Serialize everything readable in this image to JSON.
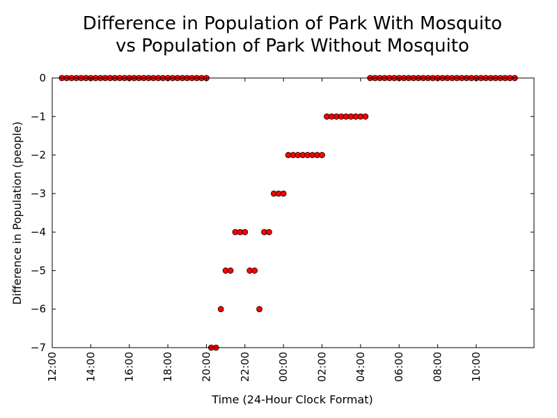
{
  "chart_data": {
    "type": "scatter",
    "title": "Difference in Population of Park With Mosquito\nvs Population of Park Without Mosquito",
    "title_lines": [
      "Difference in Population of Park With Mosquito",
      "vs Population of Park Without Mosquito"
    ],
    "xlabel": "Time (24-Hour Clock Format)",
    "ylabel": "Difference in Population (people)",
    "x_unit": "hours elapsed since 12:00",
    "xlim": [
      0,
      25
    ],
    "ylim": [
      -7,
      0
    ],
    "x_ticks": [
      {
        "value": 0,
        "label": "12:00"
      },
      {
        "value": 2,
        "label": "14:00"
      },
      {
        "value": 4,
        "label": "16:00"
      },
      {
        "value": 6,
        "label": "18:00"
      },
      {
        "value": 8,
        "label": "20:00"
      },
      {
        "value": 10,
        "label": "22:00"
      },
      {
        "value": 12,
        "label": "00:00"
      },
      {
        "value": 14,
        "label": "02:00"
      },
      {
        "value": 16,
        "label": "04:00"
      },
      {
        "value": 18,
        "label": "06:00"
      },
      {
        "value": 20,
        "label": "08:00"
      },
      {
        "value": 22,
        "label": "10:00"
      }
    ],
    "y_ticks": [
      {
        "value": 0,
        "label": "0"
      },
      {
        "value": -1,
        "label": "−1"
      },
      {
        "value": -2,
        "label": "−2"
      },
      {
        "value": -3,
        "label": "−3"
      },
      {
        "value": -4,
        "label": "−4"
      },
      {
        "value": -5,
        "label": "−5"
      },
      {
        "value": -6,
        "label": "−6"
      },
      {
        "value": -7,
        "label": "−7"
      }
    ],
    "grid": false,
    "marker_color": "#ff0000",
    "marker_edge_color": "#000000",
    "series": [
      {
        "points": [
          [
            0.5,
            0
          ],
          [
            0.75,
            0
          ],
          [
            1.0,
            0
          ],
          [
            1.25,
            0
          ],
          [
            1.5,
            0
          ],
          [
            1.75,
            0
          ],
          [
            2.0,
            0
          ],
          [
            2.25,
            0
          ],
          [
            2.5,
            0
          ],
          [
            2.75,
            0
          ],
          [
            3.0,
            0
          ],
          [
            3.25,
            0
          ],
          [
            3.5,
            0
          ],
          [
            3.75,
            0
          ],
          [
            4.0,
            0
          ],
          [
            4.25,
            0
          ],
          [
            4.5,
            0
          ],
          [
            4.75,
            0
          ],
          [
            5.0,
            0
          ],
          [
            5.25,
            0
          ],
          [
            5.5,
            0
          ],
          [
            5.75,
            0
          ],
          [
            6.0,
            0
          ],
          [
            6.25,
            0
          ],
          [
            6.5,
            0
          ],
          [
            6.75,
            0
          ],
          [
            7.0,
            0
          ],
          [
            7.25,
            0
          ],
          [
            7.5,
            0
          ],
          [
            7.75,
            0
          ],
          [
            8.0,
            0
          ],
          [
            8.25,
            -7
          ],
          [
            8.5,
            -7
          ],
          [
            8.75,
            -6
          ],
          [
            9.0,
            -5
          ],
          [
            9.25,
            -5
          ],
          [
            9.5,
            -4
          ],
          [
            9.75,
            -4
          ],
          [
            10.0,
            -4
          ],
          [
            10.25,
            -5
          ],
          [
            10.5,
            -5
          ],
          [
            10.75,
            -6
          ],
          [
            11.0,
            -4
          ],
          [
            11.25,
            -4
          ],
          [
            11.5,
            -3
          ],
          [
            11.75,
            -3
          ],
          [
            12.0,
            -3
          ],
          [
            12.25,
            -2
          ],
          [
            12.5,
            -2
          ],
          [
            12.75,
            -2
          ],
          [
            13.0,
            -2
          ],
          [
            13.25,
            -2
          ],
          [
            13.5,
            -2
          ],
          [
            13.75,
            -2
          ],
          [
            14.0,
            -2
          ],
          [
            14.25,
            -1
          ],
          [
            14.5,
            -1
          ],
          [
            14.75,
            -1
          ],
          [
            15.0,
            -1
          ],
          [
            15.25,
            -1
          ],
          [
            15.5,
            -1
          ],
          [
            15.75,
            -1
          ],
          [
            16.0,
            -1
          ],
          [
            16.25,
            -1
          ],
          [
            16.5,
            0
          ],
          [
            16.75,
            0
          ],
          [
            17.0,
            0
          ],
          [
            17.25,
            0
          ],
          [
            17.5,
            0
          ],
          [
            17.75,
            0
          ],
          [
            18.0,
            0
          ],
          [
            18.25,
            0
          ],
          [
            18.5,
            0
          ],
          [
            18.75,
            0
          ],
          [
            19.0,
            0
          ],
          [
            19.25,
            0
          ],
          [
            19.5,
            0
          ],
          [
            19.75,
            0
          ],
          [
            20.0,
            0
          ],
          [
            20.25,
            0
          ],
          [
            20.5,
            0
          ],
          [
            20.75,
            0
          ],
          [
            21.0,
            0
          ],
          [
            21.25,
            0
          ],
          [
            21.5,
            0
          ],
          [
            21.75,
            0
          ],
          [
            22.0,
            0
          ],
          [
            22.25,
            0
          ],
          [
            22.5,
            0
          ],
          [
            22.75,
            0
          ],
          [
            23.0,
            0
          ],
          [
            23.25,
            0
          ],
          [
            23.5,
            0
          ],
          [
            23.75,
            0
          ],
          [
            24.0,
            0
          ]
        ]
      }
    ]
  }
}
